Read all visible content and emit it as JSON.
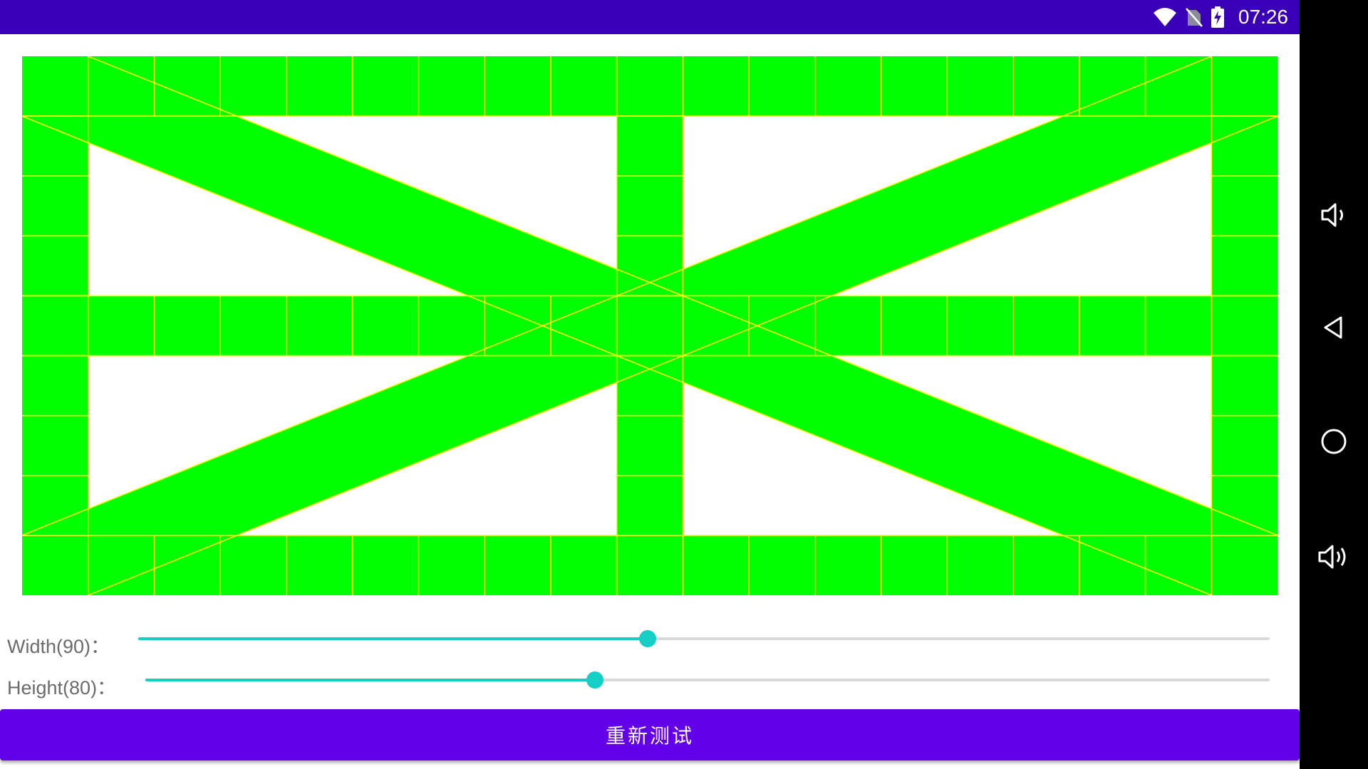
{
  "status_bar": {
    "time": "07:26",
    "icons": [
      "wifi-icon",
      "no-sim-icon",
      "battery-charging-icon"
    ],
    "background": "#3a00b8"
  },
  "nav_bar": {
    "buttons": [
      "volume-down-icon",
      "back-icon",
      "home-icon",
      "volume-up-icon"
    ],
    "background": "#000000"
  },
  "grid_canvas": {
    "fill_color": "#00ff00",
    "line_color": "#ffff00",
    "background": "#ffffff"
  },
  "controls": {
    "width_slider": {
      "label": "Width(90)：",
      "value": 90,
      "fraction": 0.45
    },
    "height_slider": {
      "label": "Height(80)：",
      "value": 80,
      "fraction": 0.4
    },
    "accent": "#16cfc4"
  },
  "retest_button": {
    "label": "重新测试",
    "color": "#6200ea"
  }
}
